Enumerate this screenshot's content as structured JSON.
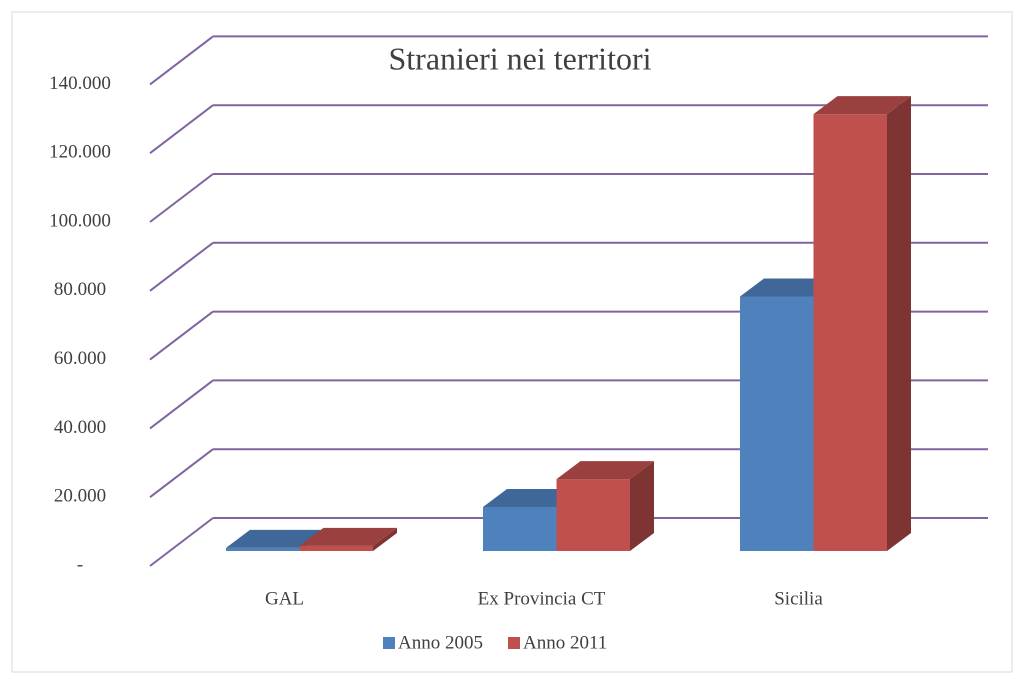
{
  "chart_data": {
    "type": "bar3d",
    "title": "Stranieri nei territori",
    "categories": [
      "GAL",
      "Ex Provincia CT",
      "Sicilia"
    ],
    "series": [
      {
        "name": "Anno 2005",
        "color": "#4f81bd",
        "values": [
          900,
          12800,
          74000
        ]
      },
      {
        "name": "Anno 2011",
        "color": "#c0504d",
        "values": [
          1500,
          20900,
          127000
        ]
      }
    ],
    "ylim": [
      0,
      140000
    ],
    "yticks": [
      {
        "value": 0,
        "label": "-"
      },
      {
        "value": 20000,
        "label": "20.000"
      },
      {
        "value": 40000,
        "label": "40.000"
      },
      {
        "value": 60000,
        "label": "60.000"
      },
      {
        "value": 80000,
        "label": "80.000"
      },
      {
        "value": 100000,
        "label": "100.000"
      },
      {
        "value": 120000,
        "label": "120.000"
      },
      {
        "value": 140000,
        "label": "140.000"
      }
    ],
    "grid": true,
    "legend": "bottom"
  }
}
